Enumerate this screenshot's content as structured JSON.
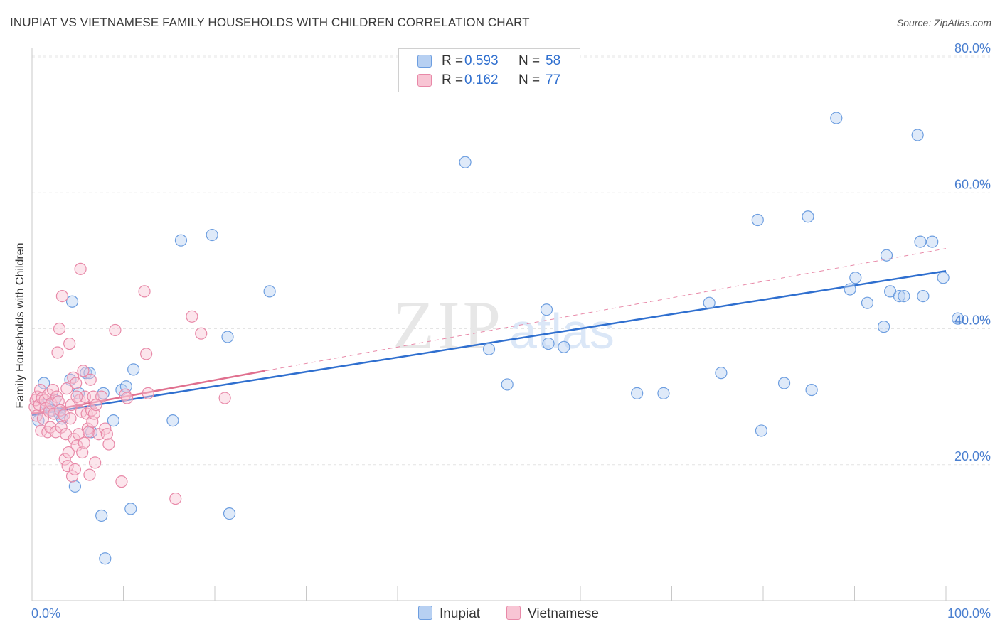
{
  "title": "INUPIAT VS VIETNAMESE FAMILY HOUSEHOLDS WITH CHILDREN CORRELATION CHART",
  "source": "Source: ZipAtlas.com",
  "watermark": {
    "zip": "ZIP",
    "atlas": "atlas"
  },
  "legend": {
    "rows": [
      {
        "name": "Inupiat",
        "r_label": "R =",
        "r_value": "0.593",
        "n_label": "N =",
        "n_value": "58",
        "fill": "#b7d0f2",
        "stroke": "#6d9ee0"
      },
      {
        "name": "Vietnamese",
        "r_label": "R =",
        "r_value": "0.162",
        "n_label": "N =",
        "n_value": "77",
        "fill": "#f8c5d4",
        "stroke": "#e889a8"
      }
    ]
  },
  "bottom_legend": {
    "a": "Inupiat",
    "b": "Vietnamese"
  },
  "chart_data": {
    "type": "scatter",
    "title": "INUPIAT VS VIETNAMESE FAMILY HOUSEHOLDS WITH CHILDREN CORRELATION CHART",
    "xlabel": "",
    "ylabel": "Family Households with Children",
    "xlim": [
      0,
      100
    ],
    "ylim": [
      0,
      80
    ],
    "x_tick_labels": {
      "left": "0.0%",
      "right": "100.0%"
    },
    "y_ticks": [
      {
        "value": 20,
        "label": "20.0%"
      },
      {
        "value": 40,
        "label": "40.0%"
      },
      {
        "value": 60,
        "label": "60.0%"
      },
      {
        "value": 80,
        "label": "80.0%"
      }
    ],
    "grid": true,
    "series": [
      {
        "name": "Inupiat",
        "color": "#6d9ee0",
        "fill": "#b7d0f2",
        "trend": {
          "x0": 0,
          "y0": 27.3,
          "x1": 100,
          "y1": 48.5,
          "style": "solid",
          "color": "#2f6fcf"
        },
        "points": [
          [
            0.7,
            26.5
          ],
          [
            1.3,
            32.0
          ],
          [
            1.6,
            28.8
          ],
          [
            2.2,
            28.0
          ],
          [
            2.5,
            29.5
          ],
          [
            3.0,
            27.5
          ],
          [
            3.3,
            26.8
          ],
          [
            4.2,
            32.5
          ],
          [
            4.4,
            44.0
          ],
          [
            4.7,
            16.8
          ],
          [
            5.1,
            30.5
          ],
          [
            5.9,
            33.5
          ],
          [
            6.3,
            33.5
          ],
          [
            6.5,
            24.8
          ],
          [
            7.6,
            12.5
          ],
          [
            7.8,
            30.5
          ],
          [
            8.0,
            6.2
          ],
          [
            8.9,
            26.5
          ],
          [
            9.8,
            31.0
          ],
          [
            10.3,
            31.5
          ],
          [
            10.8,
            13.5
          ],
          [
            11.1,
            34.0
          ],
          [
            15.4,
            26.5
          ],
          [
            16.3,
            53.0
          ],
          [
            19.7,
            53.8
          ],
          [
            21.4,
            38.8
          ],
          [
            21.6,
            12.8
          ],
          [
            26.0,
            45.5
          ],
          [
            47.4,
            64.5
          ],
          [
            50.0,
            37.0
          ],
          [
            52.0,
            31.8
          ],
          [
            56.3,
            42.8
          ],
          [
            56.5,
            37.8
          ],
          [
            58.2,
            37.3
          ],
          [
            66.2,
            30.5
          ],
          [
            69.1,
            30.5
          ],
          [
            74.1,
            43.8
          ],
          [
            75.4,
            33.5
          ],
          [
            79.4,
            56.0
          ],
          [
            79.8,
            25.0
          ],
          [
            82.3,
            32.0
          ],
          [
            84.9,
            56.5
          ],
          [
            85.3,
            31.0
          ],
          [
            88.0,
            71.0
          ],
          [
            89.5,
            45.8
          ],
          [
            90.1,
            47.5
          ],
          [
            91.4,
            43.8
          ],
          [
            93.2,
            40.3
          ],
          [
            93.5,
            50.8
          ],
          [
            93.9,
            45.5
          ],
          [
            94.9,
            44.8
          ],
          [
            95.4,
            44.8
          ],
          [
            96.9,
            68.5
          ],
          [
            97.2,
            52.8
          ],
          [
            97.5,
            44.8
          ],
          [
            98.5,
            52.8
          ],
          [
            99.7,
            47.5
          ],
          [
            101.3,
            41.5
          ]
        ]
      },
      {
        "name": "Vietnamese",
        "color": "#e889a8",
        "fill": "#f8c5d4",
        "trend": {
          "x0": 0,
          "y0": 27.5,
          "x1": 25.5,
          "y1": 33.8,
          "style": "solid",
          "color": "#e0708f"
        },
        "trend_extension": {
          "x0": 25.5,
          "y0": 33.8,
          "x1": 100,
          "y1": 51.8,
          "style": "dashed",
          "color": "#e889a8"
        },
        "points": [
          [
            0.3,
            28.5
          ],
          [
            0.4,
            29.5
          ],
          [
            0.5,
            27.2
          ],
          [
            0.6,
            30.0
          ],
          [
            0.8,
            28.8
          ],
          [
            0.9,
            31.0
          ],
          [
            1.0,
            25.0
          ],
          [
            1.1,
            29.8
          ],
          [
            1.2,
            26.8
          ],
          [
            1.4,
            29.5
          ],
          [
            1.5,
            28.3
          ],
          [
            1.7,
            24.8
          ],
          [
            1.8,
            30.3
          ],
          [
            1.9,
            27.8
          ],
          [
            2.0,
            25.5
          ],
          [
            2.1,
            29.0
          ],
          [
            2.3,
            31.0
          ],
          [
            2.4,
            27.5
          ],
          [
            2.6,
            24.8
          ],
          [
            2.7,
            30.0
          ],
          [
            2.8,
            36.5
          ],
          [
            2.9,
            29.3
          ],
          [
            3.0,
            40.0
          ],
          [
            3.1,
            28.0
          ],
          [
            3.2,
            25.5
          ],
          [
            3.3,
            44.8
          ],
          [
            3.5,
            27.3
          ],
          [
            3.6,
            20.8
          ],
          [
            3.7,
            24.5
          ],
          [
            3.8,
            31.2
          ],
          [
            3.9,
            19.8
          ],
          [
            4.0,
            21.8
          ],
          [
            4.1,
            37.8
          ],
          [
            4.2,
            26.8
          ],
          [
            4.3,
            28.8
          ],
          [
            4.4,
            18.3
          ],
          [
            4.5,
            32.8
          ],
          [
            4.6,
            23.8
          ],
          [
            4.7,
            19.3
          ],
          [
            4.8,
            32.0
          ],
          [
            4.9,
            22.8
          ],
          [
            5.1,
            24.5
          ],
          [
            5.2,
            29.5
          ],
          [
            5.3,
            48.8
          ],
          [
            5.4,
            27.8
          ],
          [
            5.5,
            21.8
          ],
          [
            5.6,
            33.8
          ],
          [
            5.7,
            23.2
          ],
          [
            5.8,
            30.0
          ],
          [
            6.0,
            27.5
          ],
          [
            6.1,
            25.3
          ],
          [
            6.2,
            24.8
          ],
          [
            6.3,
            18.5
          ],
          [
            6.4,
            32.5
          ],
          [
            6.5,
            28.0
          ],
          [
            6.6,
            26.3
          ],
          [
            6.7,
            30.0
          ],
          [
            6.8,
            27.5
          ],
          [
            6.9,
            20.3
          ],
          [
            7.3,
            24.5
          ],
          [
            7.6,
            30.0
          ],
          [
            8.0,
            25.3
          ],
          [
            8.2,
            24.5
          ],
          [
            8.4,
            23.0
          ],
          [
            9.1,
            39.8
          ],
          [
            9.8,
            17.5
          ],
          [
            10.2,
            30.3
          ],
          [
            10.4,
            29.8
          ],
          [
            12.3,
            45.5
          ],
          [
            12.5,
            36.3
          ],
          [
            12.7,
            30.5
          ],
          [
            15.7,
            15.0
          ],
          [
            17.5,
            41.8
          ],
          [
            18.5,
            39.3
          ],
          [
            21.1,
            29.8
          ],
          [
            4.9,
            30.0
          ],
          [
            7.0,
            28.8
          ]
        ]
      }
    ]
  }
}
